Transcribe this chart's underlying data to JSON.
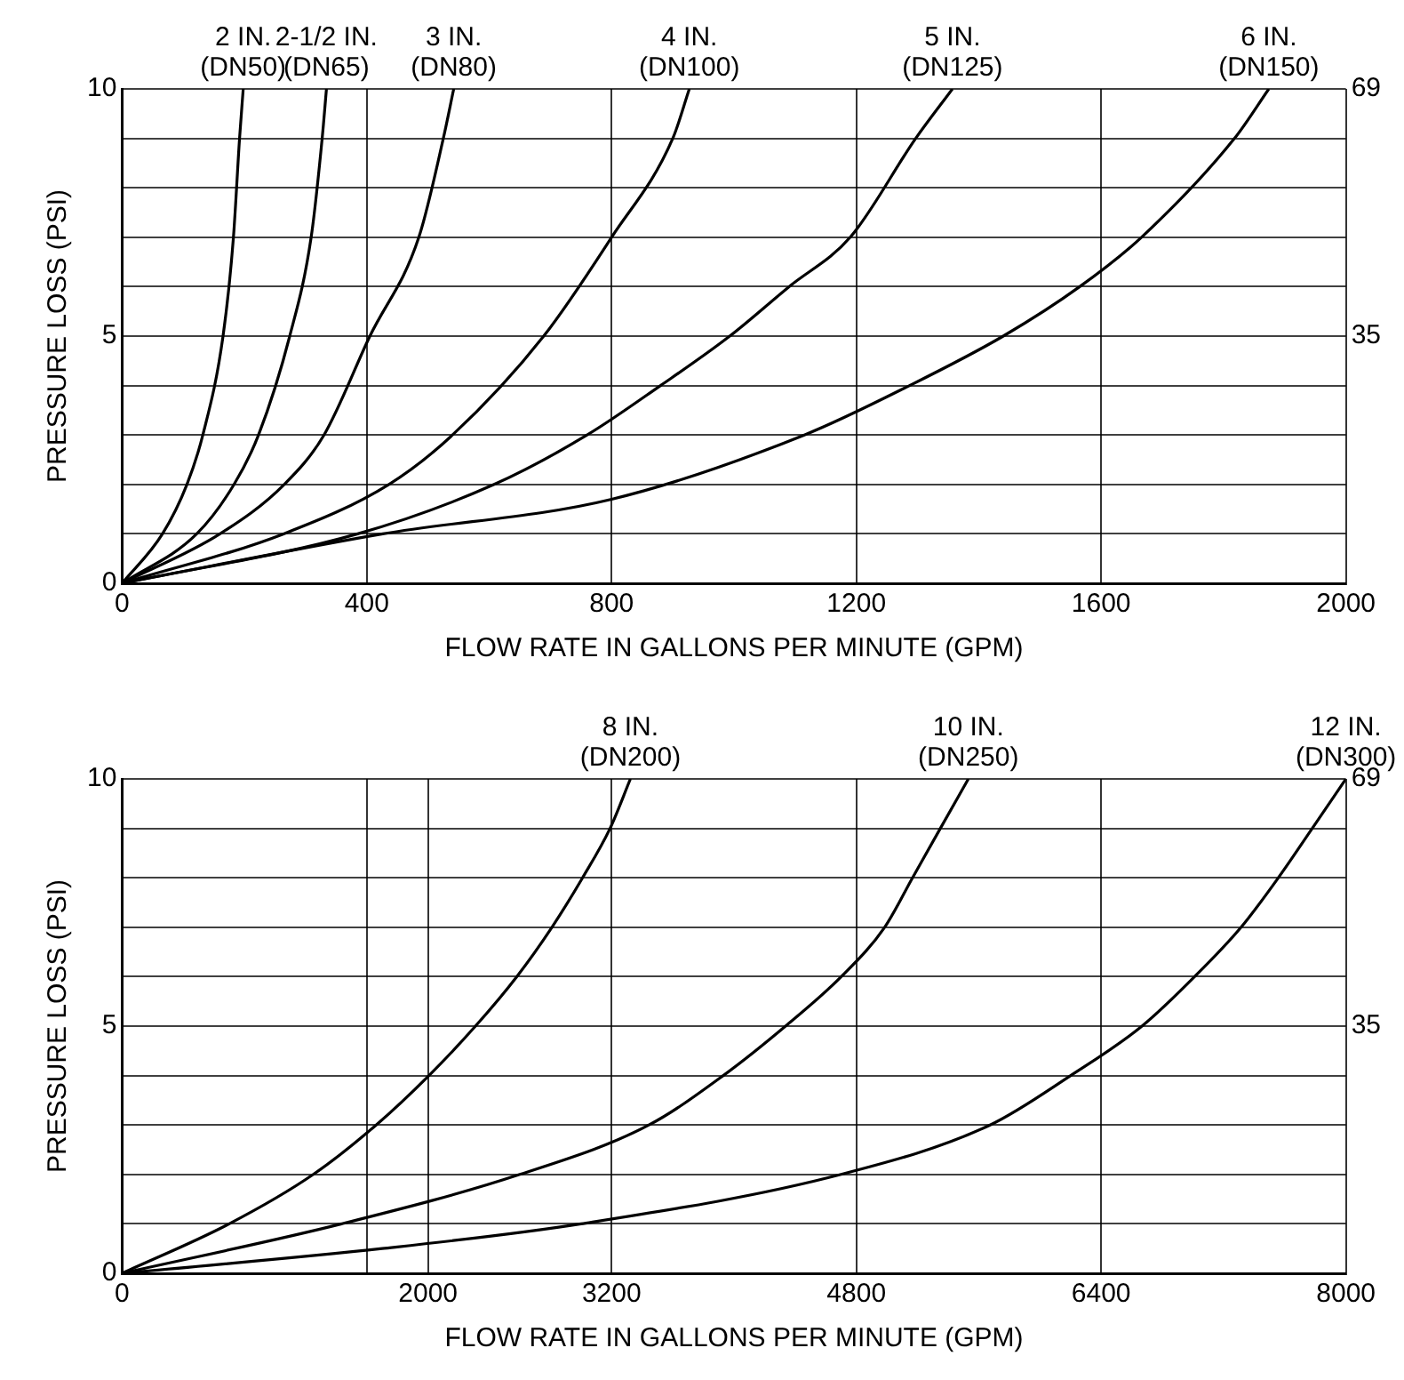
{
  "chart_data": [
    {
      "type": "line",
      "xlabel": "FLOW RATE IN GALLONS PER MINUTE (GPM)",
      "ylabel": "PRESSURE LOSS (PSI)",
      "xlim": [
        0,
        2000
      ],
      "xticks": [
        0,
        400,
        800,
        1200,
        1600,
        2000
      ],
      "ylim": [
        0,
        10
      ],
      "yticks": [
        0,
        {
          "value": 1,
          "label": null
        },
        {
          "value": 2,
          "label": null
        },
        {
          "value": 3,
          "label": null
        },
        {
          "value": 4,
          "label": null
        },
        5,
        {
          "value": 6,
          "label": null
        },
        {
          "value": 7,
          "label": null
        },
        {
          "value": 8,
          "label": null
        },
        {
          "value": 9,
          "label": null
        },
        10
      ],
      "y2lim": [
        0,
        69
      ],
      "y2ticks": [
        {
          "value": 34.5,
          "label": "35"
        },
        69
      ],
      "grid": true,
      "legend": false,
      "marker": "none",
      "line_style": "solid",
      "series": [
        {
          "name": "2 IN.\n(DN50)",
          "color": "#000000",
          "x": [
            0,
            66,
            106,
            132,
            165,
            182,
            192,
            198
          ],
          "values": [
            0,
            1,
            2,
            3,
            5,
            7,
            9,
            10
          ]
        },
        {
          "name": "2-1/2 IN.\n(DN65)",
          "color": "#000000",
          "x": [
            0,
            122,
            183,
            223,
            274,
            309,
            327,
            334
          ],
          "values": [
            0,
            1,
            2,
            3,
            5,
            7,
            9,
            10
          ]
        },
        {
          "name": "3 IN.\n(DN80)",
          "color": "#000000",
          "x": [
            0,
            160,
            265,
            330,
            405,
            485,
            525,
            542
          ],
          "values": [
            0,
            1,
            2,
            3,
            5,
            7,
            9,
            10
          ]
        },
        {
          "name": "4 IN.\n(DN100)",
          "color": "#000000",
          "x": [
            0,
            264,
            436,
            540,
            689,
            800,
            900,
            927
          ],
          "values": [
            0,
            1,
            2,
            3,
            5,
            7,
            9,
            10
          ]
        },
        {
          "name": "5 IN.\n(DN125)",
          "color": "#000000",
          "x": [
            0,
            385,
            608,
            760,
            880,
            993,
            1090,
            1190,
            1297,
            1357
          ],
          "values": [
            0,
            1,
            2,
            3,
            4,
            5,
            6,
            7,
            9,
            10
          ]
        },
        {
          "name": "6 IN.\n(DN150)",
          "color": "#000000",
          "x": [
            0,
            426,
            800,
            1115,
            1287,
            1440,
            1565,
            1666,
            1818,
            1874
          ],
          "values": [
            0,
            1,
            1.7,
            3,
            4,
            5,
            6,
            7,
            9,
            10
          ]
        }
      ]
    },
    {
      "type": "line",
      "xlabel": "FLOW RATE IN GALLONS PER MINUTE (GPM)",
      "ylabel": "PRESSURE LOSS (PSI)",
      "xlim": [
        0,
        8000
      ],
      "xticks": [
        0,
        {
          "value": 1600,
          "label": null
        },
        2000,
        3200,
        4800,
        6400,
        8000
      ],
      "ylim": [
        0,
        10
      ],
      "yticks": [
        0,
        {
          "value": 1,
          "label": null
        },
        {
          "value": 2,
          "label": null
        },
        {
          "value": 3,
          "label": null
        },
        {
          "value": 4,
          "label": null
        },
        5,
        {
          "value": 6,
          "label": null
        },
        {
          "value": 7,
          "label": null
        },
        {
          "value": 8,
          "label": null
        },
        {
          "value": 9,
          "label": null
        },
        10
      ],
      "y2lim": [
        0,
        69
      ],
      "y2ticks": [
        {
          "value": 34.5,
          "label": "35"
        },
        69
      ],
      "grid": true,
      "legend": false,
      "marker": "none",
      "line_style": "solid",
      "series": [
        {
          "name": "8 IN.\n(DN200)",
          "color": "#000000",
          "x": [
            0,
            700,
            1250,
            1661,
            2006,
            2310,
            2580,
            2810,
            3010,
            3190,
            3323
          ],
          "values": [
            0,
            1,
            2,
            3,
            4,
            5,
            6,
            7,
            8,
            9,
            10
          ]
        },
        {
          "name": "10 IN.\n(DN250)",
          "color": "#000000",
          "x": [
            0,
            1435,
            2600,
            3444,
            3930,
            4337,
            4701,
            4985,
            5167,
            5349,
            5532
          ],
          "values": [
            0,
            1,
            2,
            3,
            4,
            5,
            6,
            7,
            8,
            9,
            10
          ]
        },
        {
          "name": "12 IN.\n(DN300)",
          "color": "#000000",
          "x": [
            0,
            1700,
            3000,
            4700,
            5674,
            6201,
            6667,
            7011,
            7315,
            7558,
            7780,
            8000
          ],
          "values": [
            0,
            0.5,
            1,
            2,
            3,
            4,
            5,
            6,
            7,
            8,
            9,
            10
          ]
        }
      ]
    }
  ]
}
